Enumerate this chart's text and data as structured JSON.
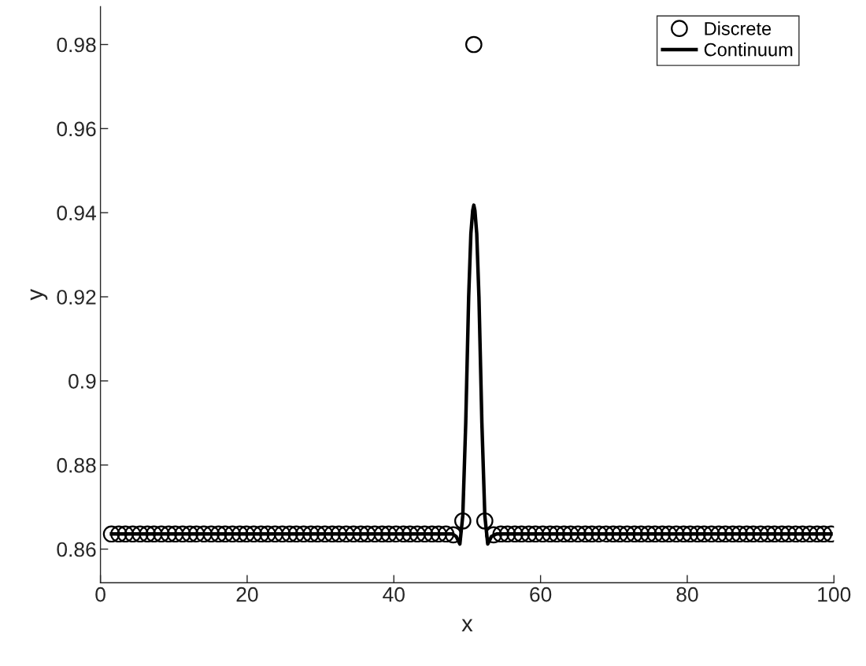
{
  "chart_data": {
    "type": "line",
    "xlabel": "x",
    "ylabel": "y",
    "xlim": [
      0,
      100
    ],
    "xticks": [
      0,
      20,
      40,
      60,
      80,
      100
    ],
    "ylim": [
      0.852,
      0.989
    ],
    "yticks": [
      0.86,
      0.88,
      0.9,
      0.92,
      0.94,
      0.96,
      0.98
    ],
    "grid": false,
    "legend": "top right",
    "series": [
      {
        "name": "Discrete",
        "type": "scatter",
        "marker": "circle",
        "color": "#000000",
        "x": [
          1.5,
          2.5,
          3.4,
          4.4,
          5.4,
          6.4,
          7.3,
          8.3,
          9.3,
          10.2,
          11.2,
          12.2,
          13.1,
          14.1,
          15.1,
          16.1,
          17.0,
          18.0,
          19.0,
          19.9,
          20.9,
          21.9,
          22.8,
          23.8,
          24.8,
          25.8,
          26.7,
          27.7,
          28.7,
          29.6,
          30.6,
          31.6,
          32.5,
          33.5,
          34.5,
          35.5,
          36.4,
          37.4,
          38.4,
          39.3,
          40.3,
          41.3,
          42.2,
          43.2,
          44.2,
          45.2,
          46.1,
          47.1,
          48.1,
          49.4,
          50.9,
          52.4,
          53.6,
          54.6,
          55.5,
          56.5,
          57.4,
          58.4,
          59.3,
          60.3,
          61.3,
          62.2,
          63.2,
          64.1,
          65.1,
          66.1,
          67.0,
          68.0,
          68.9,
          69.9,
          70.8,
          71.8,
          72.8,
          73.7,
          74.7,
          75.6,
          76.6,
          77.5,
          78.5,
          79.5,
          80.4,
          81.4,
          82.3,
          83.3,
          84.3,
          85.2,
          86.2,
          87.1,
          88.1,
          89.0,
          90.0,
          91.0,
          91.9,
          92.9,
          93.8,
          94.8,
          95.7,
          96.7,
          97.7,
          98.6,
          99.6
        ],
        "values": [
          0.8636,
          0.8636,
          0.8636,
          0.8636,
          0.8636,
          0.8636,
          0.8636,
          0.8636,
          0.8636,
          0.8636,
          0.8636,
          0.8636,
          0.8636,
          0.8636,
          0.8636,
          0.8636,
          0.8636,
          0.8636,
          0.8636,
          0.8636,
          0.8636,
          0.8636,
          0.8636,
          0.8636,
          0.8636,
          0.8636,
          0.8636,
          0.8636,
          0.8636,
          0.8636,
          0.8636,
          0.8636,
          0.8636,
          0.8636,
          0.8636,
          0.8636,
          0.8636,
          0.8636,
          0.8636,
          0.8636,
          0.8636,
          0.8636,
          0.8636,
          0.8636,
          0.8636,
          0.8636,
          0.8636,
          0.8636,
          0.8634,
          0.8667,
          0.98,
          0.8667,
          0.8634,
          0.8636,
          0.8636,
          0.8636,
          0.8636,
          0.8636,
          0.8636,
          0.8636,
          0.8636,
          0.8636,
          0.8636,
          0.8636,
          0.8636,
          0.8636,
          0.8636,
          0.8636,
          0.8636,
          0.8636,
          0.8636,
          0.8636,
          0.8636,
          0.8636,
          0.8636,
          0.8636,
          0.8636,
          0.8636,
          0.8636,
          0.8636,
          0.8636,
          0.8636,
          0.8636,
          0.8636,
          0.8636,
          0.8636,
          0.8636,
          0.8636,
          0.8636,
          0.8636,
          0.8636,
          0.8636,
          0.8636,
          0.8636,
          0.8636,
          0.8636,
          0.8636,
          0.8636,
          0.8636,
          0.8636,
          0.8636
        ]
      },
      {
        "name": "Continuum",
        "marker": "none",
        "line_style": "solid",
        "color": "#000000",
        "x": [
          1.5,
          48.0,
          48.5,
          49.0,
          49.4,
          49.8,
          50.2,
          50.5,
          50.75,
          50.9,
          51.05,
          51.3,
          51.6,
          52.0,
          52.4,
          52.8,
          53.3,
          54.0,
          99.6
        ],
        "values": [
          0.8636,
          0.8636,
          0.863,
          0.8612,
          0.868,
          0.89,
          0.92,
          0.935,
          0.9405,
          0.9418,
          0.9405,
          0.935,
          0.92,
          0.89,
          0.868,
          0.8612,
          0.863,
          0.8636,
          0.8636
        ]
      }
    ]
  }
}
